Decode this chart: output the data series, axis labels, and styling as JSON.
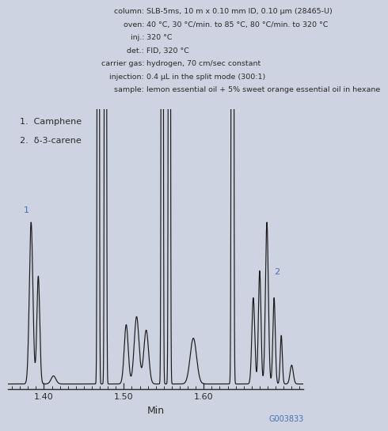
{
  "bg_color": "#cdd3e0",
  "line_color": "#1a1a1a",
  "text_color": "#2a2a2a",
  "annotation_color": "#4472aa",
  "header_lines": [
    [
      "    column: ",
      "SLB-5ms, 10 m x 0.10 mm ID, 0.10 μm (28465-U)"
    ],
    [
      "      oven: ",
      "40 °C, 30 °C/min. to 85 °C, 80 °C/min. to 320 °C"
    ],
    [
      "       inj.: ",
      "320 °C"
    ],
    [
      "       det.: ",
      "FID, 320 °C"
    ],
    [
      "carrier gas: ",
      "hydrogen, 70 cm/sec constant"
    ],
    [
      "  injection: ",
      "0.4 μL in the split mode (300:1)"
    ],
    [
      "    sample: ",
      "lemon essential oil + 5% sweet orange essential oil in hexane"
    ]
  ],
  "xlabel": "Min",
  "xmin": 1.355,
  "xmax": 1.725,
  "watermark": "G003833",
  "peak1_label": "1.  Camphene",
  "peak2_label": "2.  δ-3-carene"
}
